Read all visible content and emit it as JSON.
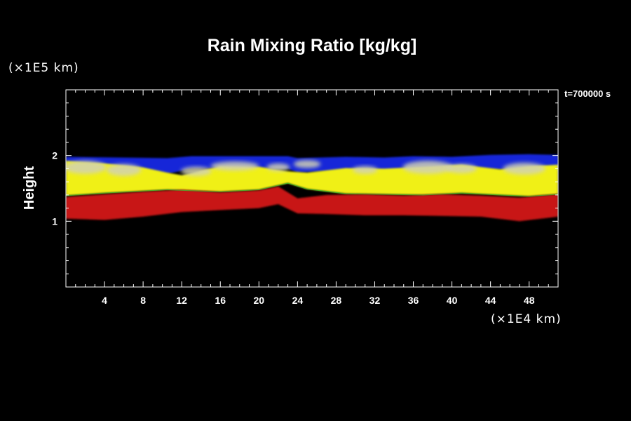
{
  "chart_data": {
    "type": "heatmap",
    "title": "Rain Mixing Ratio [kg/kg]",
    "ylabel": "Height",
    "x_unit": "(×1E4 km)",
    "y_unit": "(×1E5 km)",
    "time_label": "t=700000 s",
    "xlim": [
      0,
      51
    ],
    "ylim": [
      0,
      3
    ],
    "x_ticks": [
      4,
      8,
      12,
      16,
      20,
      24,
      28,
      32,
      36,
      40,
      44,
      48
    ],
    "y_ticks": [
      1,
      2
    ],
    "x_minor_step": 1,
    "y_minor_step": 0.2,
    "colors": {
      "background": "#000000",
      "axes": "#ffffff",
      "top_band": "#1428d8",
      "upper_band": "#f0f016",
      "cloud_highlight": "#d2d2b4",
      "lower_band": "#c81414",
      "edge_accent": "#2adc3c"
    },
    "bands": [
      {
        "name": "top",
        "color": "#1428d8",
        "x": [
          0,
          10.5,
          13,
          23,
          24,
          29,
          33,
          36,
          40,
          44,
          48,
          51
        ],
        "top": [
          1.98,
          1.96,
          1.99,
          1.99,
          1.96,
          1.98,
          1.97,
          1.99,
          1.98,
          2.01,
          2.02,
          2.01
        ],
        "bottom": [
          1.84,
          1.72,
          1.8,
          1.8,
          1.74,
          1.76,
          1.76,
          1.8,
          1.81,
          1.79,
          1.76,
          1.76
        ]
      },
      {
        "name": "upper",
        "color": "#f0f016",
        "x": [
          0,
          4,
          8,
          10.5,
          12,
          16,
          20,
          23,
          25,
          29,
          33,
          37,
          41,
          45,
          48,
          51
        ],
        "top": [
          1.92,
          1.88,
          1.82,
          1.74,
          1.7,
          1.84,
          1.83,
          1.76,
          1.74,
          1.81,
          1.8,
          1.83,
          1.86,
          1.79,
          1.84,
          1.86
        ],
        "bottom": [
          1.39,
          1.43,
          1.46,
          1.48,
          1.47,
          1.45,
          1.48,
          1.58,
          1.49,
          1.42,
          1.41,
          1.4,
          1.43,
          1.4,
          1.38,
          1.41
        ]
      },
      {
        "name": "lower",
        "color": "#c81414",
        "x": [
          0,
          4,
          8,
          12,
          16,
          20,
          22,
          24,
          27,
          31,
          35,
          39,
          43,
          47,
          51
        ],
        "top": [
          1.37,
          1.41,
          1.45,
          1.48,
          1.44,
          1.47,
          1.53,
          1.35,
          1.4,
          1.41,
          1.39,
          1.41,
          1.39,
          1.36,
          1.41
        ],
        "bottom": [
          1.04,
          1.02,
          1.07,
          1.14,
          1.17,
          1.2,
          1.26,
          1.12,
          1.11,
          1.09,
          1.09,
          1.08,
          1.07,
          1.0,
          1.07
        ]
      }
    ],
    "clouds": [
      {
        "x": 2,
        "y": 1.82,
        "rx": 2.2,
        "ry": 0.1
      },
      {
        "x": 6,
        "y": 1.78,
        "rx": 1.8,
        "ry": 0.09
      },
      {
        "x": 13.5,
        "y": 1.76,
        "rx": 1.6,
        "ry": 0.07
      },
      {
        "x": 17.5,
        "y": 1.84,
        "rx": 2.5,
        "ry": 0.07
      },
      {
        "x": 22,
        "y": 1.82,
        "rx": 1.2,
        "ry": 0.06
      },
      {
        "x": 25,
        "y": 1.87,
        "rx": 1.4,
        "ry": 0.06
      },
      {
        "x": 31,
        "y": 1.78,
        "rx": 1.3,
        "ry": 0.06
      },
      {
        "x": 37.5,
        "y": 1.82,
        "rx": 2.6,
        "ry": 0.1
      },
      {
        "x": 41,
        "y": 1.8,
        "rx": 1.6,
        "ry": 0.07
      },
      {
        "x": 47.5,
        "y": 1.8,
        "rx": 2.2,
        "ry": 0.09
      }
    ]
  }
}
